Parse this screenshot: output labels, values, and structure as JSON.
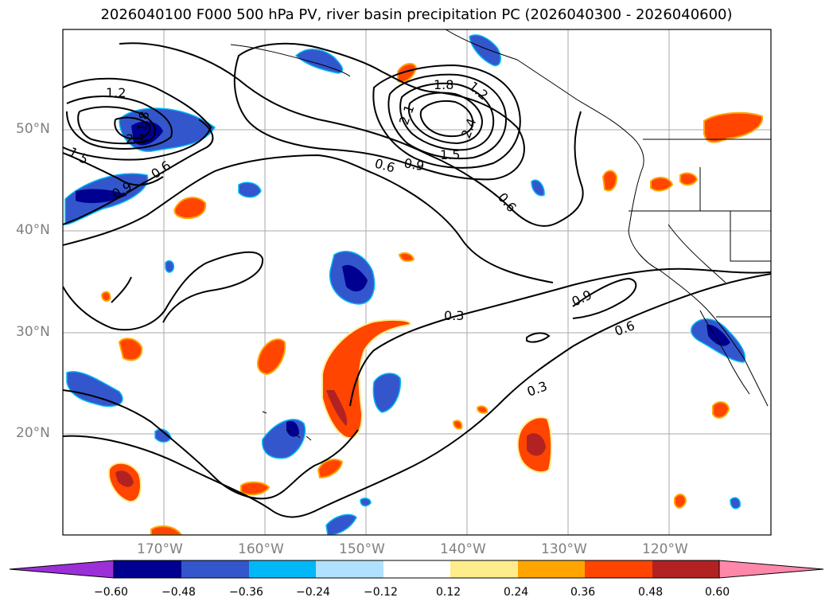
{
  "title": "2026040100 F000 500 hPa PV, river basin precipitation PC (2026040300 - 2026040600)",
  "axes": {
    "lat_labels": [
      "50°N",
      "40°N",
      "30°N",
      "20°N"
    ],
    "lon_labels": [
      "170°W",
      "160°W",
      "150°W",
      "140°W",
      "130°W",
      "120°W"
    ]
  },
  "contour_labels": {
    "c12": "1.2",
    "c18": "1.8",
    "c21": "2.1",
    "c24": "2.4",
    "c15a": "1.5",
    "c15b": "1.5",
    "c06a": "0.6",
    "c09a": "0.9",
    "c06b": "0.6",
    "c06c": "0.6",
    "c09b": "0.9",
    "c09c": "0.9",
    "c03a": "0.3",
    "c06d": "0.6",
    "c03b": "0.3",
    "c12b": "1.2",
    "c18b": "1.8",
    "c21b": "2.1"
  },
  "colorbar": {
    "labels": [
      "−0.60",
      "−0.48",
      "−0.36",
      "−0.24",
      "−0.12",
      "0.12",
      "0.24",
      "0.36",
      "0.48",
      "0.60"
    ],
    "colors": {
      "under": "#9b30d8",
      "bins": [
        "#000090",
        "#3356cc",
        "#00b8f8",
        "#b0e2ff",
        "#ffffff",
        "#ffec8b",
        "#ffa500",
        "#ff4500",
        "#b22222",
        "#ff88aa"
      ]
    }
  },
  "colors": {
    "neg_strong": "#000090",
    "neg_mid": "#3356cc",
    "neg_light": "#00b8f8",
    "pos_light": "#ffec8b",
    "pos_mid": "#ffa500",
    "pos_strong": "#ff4500",
    "pos_dark": "#b22222"
  }
}
